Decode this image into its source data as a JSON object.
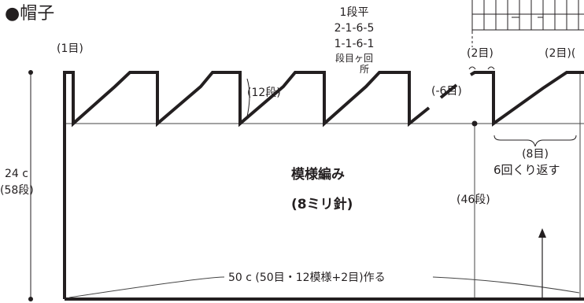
{
  "title": "●帽子",
  "decrease_rule": {
    "line1": "1段平",
    "line2": "2-1-6-5",
    "line3": "1-1-6-1",
    "line4": "段目ヶ回",
    "line5": "所"
  },
  "labels": {
    "first_stitch": "(1目)",
    "rows_12": "(12段)",
    "minus_6": "(-6目)",
    "two_st_left": "(2目)",
    "two_st_right": "(2目)(",
    "eight_st": "(8目)",
    "repeat_6": "6回くり返す",
    "height_cm": "24 c",
    "height_rows": "(58段)",
    "rows_46": "(46段)",
    "pattern_name": "模様編み",
    "needle": "(8ミリ針)",
    "bottom": "50 c (50目・12模様+2目)作る"
  },
  "colors": {
    "ink": "#231f20",
    "thin_line": "#444444"
  }
}
